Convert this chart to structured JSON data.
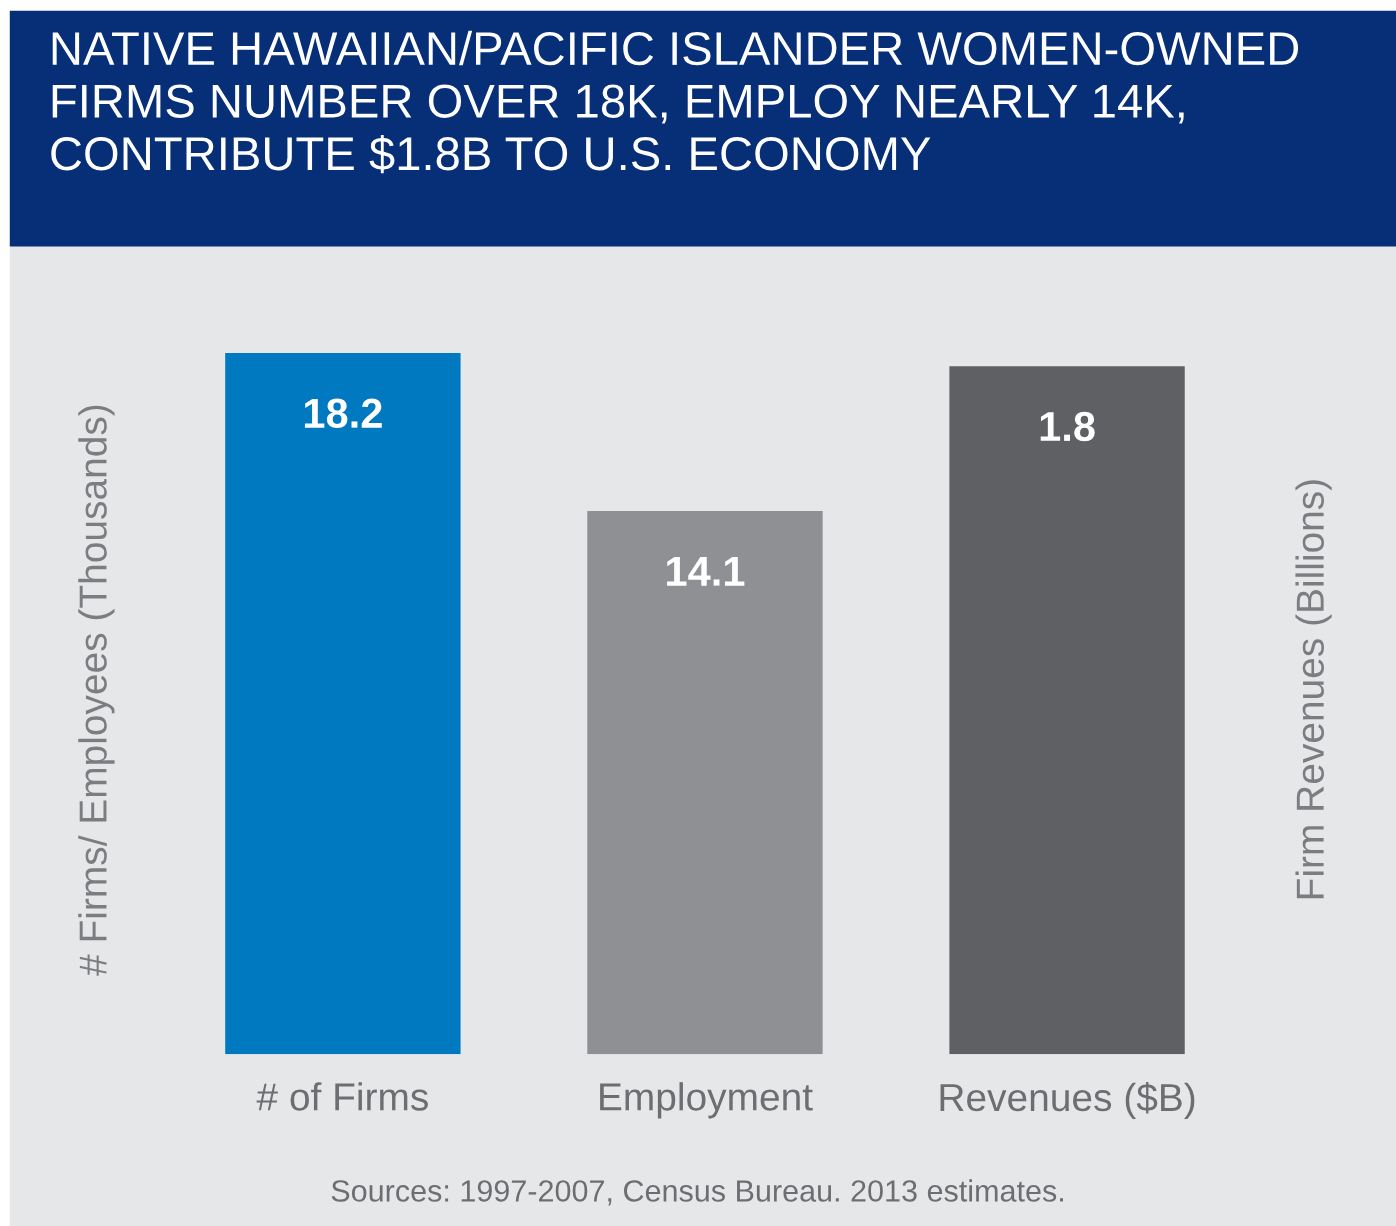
{
  "chart_data": {
    "type": "bar",
    "title": "NATIVE HAWAIIAN/PACIFIC ISLANDER WOMEN-OWNED FIRMS NUMBER OVER 18K, EMPLOY NEARLY 14K, CONTRIBUTE $1.8B TO U.S. ECONOMY",
    "ylabel": "# Firms/ Employees (Thousands)",
    "y2label": "Firm Revenues (Billions)",
    "categories": [
      "# of Firms",
      "Employment",
      "Revenues ($B)"
    ],
    "series": [
      {
        "colors": [
          "#0079c1",
          "#8f9094",
          null
        ],
        "values": [
          18.2,
          14.1,
          null
        ]
      },
      {
        "axis": "y2",
        "colors": [
          null,
          null,
          "#5f6064"
        ],
        "values": [
          null,
          null,
          1.8
        ]
      }
    ],
    "tick_labels": "x",
    "data_labels": true,
    "annotations": [
      "Sources: 1997-2007, Census Bureau. 2013 estimates."
    ]
  }
}
